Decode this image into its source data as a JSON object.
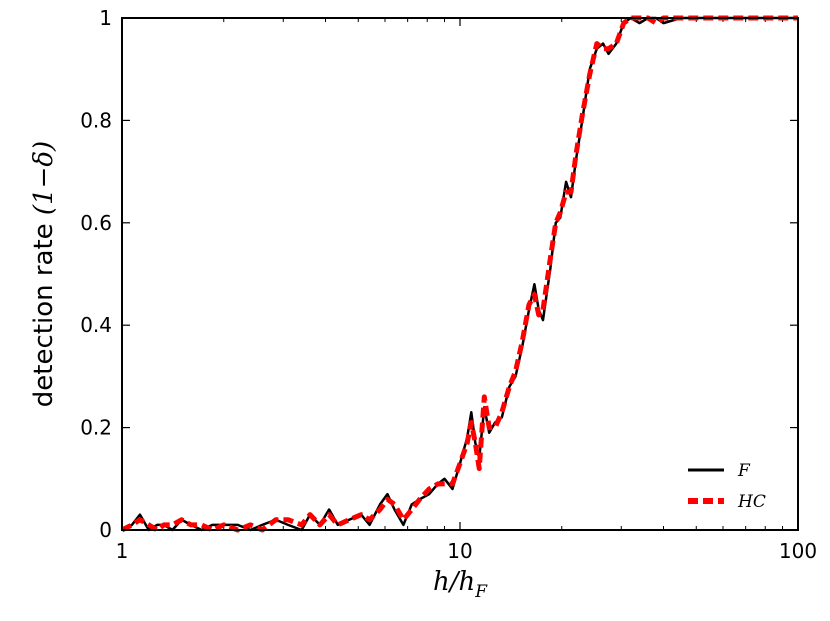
{
  "chart_data": {
    "type": "line",
    "title": "",
    "xlabel": "h/h_F",
    "xlabel_parts": {
      "base": "h/h",
      "sub": "F"
    },
    "ylabel": "detection rate (1−δ)",
    "ylabel_parts": {
      "text": "detection rate ",
      "math": "(1−δ)"
    },
    "xscale": "log",
    "xlim": [
      1,
      100
    ],
    "ylim": [
      0,
      1
    ],
    "xticks": [
      1,
      10,
      100
    ],
    "xtick_labels": [
      "1",
      "10",
      "100"
    ],
    "yticks": [
      0,
      0.2,
      0.4,
      0.6,
      0.8,
      1
    ],
    "ytick_labels": [
      "0",
      "0.2",
      "0.4",
      "0.6",
      "0.8",
      "1"
    ],
    "grid": false,
    "legend_position": "bottom-right",
    "series": [
      {
        "name": "F",
        "color": "#000000",
        "style": "solid",
        "points": [
          [
            1.0,
            0.0
          ],
          [
            1.07,
            0.01
          ],
          [
            1.13,
            0.03
          ],
          [
            1.2,
            0.0
          ],
          [
            1.27,
            0.01
          ],
          [
            1.33,
            0.01
          ],
          [
            1.41,
            0.0
          ],
          [
            1.5,
            0.02
          ],
          [
            1.6,
            0.01
          ],
          [
            1.72,
            0.0
          ],
          [
            1.85,
            0.01
          ],
          [
            2.0,
            0.01
          ],
          [
            2.2,
            0.01
          ],
          [
            2.4,
            0.0
          ],
          [
            2.6,
            0.01
          ],
          [
            2.85,
            0.02
          ],
          [
            3.1,
            0.01
          ],
          [
            3.4,
            0.0
          ],
          [
            3.6,
            0.03
          ],
          [
            3.85,
            0.01
          ],
          [
            4.1,
            0.04
          ],
          [
            4.35,
            0.01
          ],
          [
            4.7,
            0.02
          ],
          [
            5.1,
            0.03
          ],
          [
            5.4,
            0.01
          ],
          [
            5.8,
            0.05
          ],
          [
            6.1,
            0.07
          ],
          [
            6.4,
            0.04
          ],
          [
            6.8,
            0.01
          ],
          [
            7.2,
            0.05
          ],
          [
            7.6,
            0.06
          ],
          [
            8.1,
            0.07
          ],
          [
            8.6,
            0.09
          ],
          [
            9.0,
            0.1
          ],
          [
            9.5,
            0.08
          ],
          [
            10.0,
            0.13
          ],
          [
            10.5,
            0.18
          ],
          [
            10.8,
            0.23
          ],
          [
            11.1,
            0.17
          ],
          [
            11.4,
            0.14
          ],
          [
            11.8,
            0.24
          ],
          [
            12.2,
            0.19
          ],
          [
            12.7,
            0.21
          ],
          [
            13.3,
            0.22
          ],
          [
            14.0,
            0.28
          ],
          [
            14.6,
            0.3
          ],
          [
            15.3,
            0.36
          ],
          [
            16.0,
            0.43
          ],
          [
            16.6,
            0.48
          ],
          [
            17.1,
            0.43
          ],
          [
            17.6,
            0.41
          ],
          [
            18.5,
            0.51
          ],
          [
            19.2,
            0.6
          ],
          [
            19.8,
            0.61
          ],
          [
            20.6,
            0.68
          ],
          [
            21.3,
            0.65
          ],
          [
            22.0,
            0.72
          ],
          [
            23.0,
            0.8
          ],
          [
            24.2,
            0.9
          ],
          [
            25.4,
            0.94
          ],
          [
            26.5,
            0.95
          ],
          [
            27.5,
            0.93
          ],
          [
            29.0,
            0.95
          ],
          [
            30.5,
            0.99
          ],
          [
            32.0,
            1.0
          ],
          [
            34.0,
            0.99
          ],
          [
            36.0,
            1.0
          ],
          [
            38.0,
            1.0
          ],
          [
            40.0,
            0.99
          ],
          [
            45.0,
            1.0
          ],
          [
            50.0,
            1.0
          ],
          [
            60.0,
            1.0
          ],
          [
            70.0,
            1.0
          ],
          [
            85.0,
            1.0
          ],
          [
            100.0,
            1.0
          ]
        ]
      },
      {
        "name": "HC",
        "color": "#ff0000",
        "style": "dashed",
        "points": [
          [
            1.0,
            0.0
          ],
          [
            1.07,
            0.01
          ],
          [
            1.13,
            0.02
          ],
          [
            1.2,
            0.01
          ],
          [
            1.27,
            0.0
          ],
          [
            1.33,
            0.01
          ],
          [
            1.41,
            0.01
          ],
          [
            1.5,
            0.02
          ],
          [
            1.6,
            0.01
          ],
          [
            1.72,
            0.01
          ],
          [
            1.85,
            0.0
          ],
          [
            2.0,
            0.01
          ],
          [
            2.2,
            0.0
          ],
          [
            2.4,
            0.01
          ],
          [
            2.6,
            0.0
          ],
          [
            2.85,
            0.02
          ],
          [
            3.1,
            0.02
          ],
          [
            3.4,
            0.01
          ],
          [
            3.6,
            0.03
          ],
          [
            3.85,
            0.01
          ],
          [
            4.1,
            0.03
          ],
          [
            4.35,
            0.01
          ],
          [
            4.7,
            0.02
          ],
          [
            5.1,
            0.03
          ],
          [
            5.4,
            0.02
          ],
          [
            5.8,
            0.04
          ],
          [
            6.1,
            0.06
          ],
          [
            6.4,
            0.05
          ],
          [
            6.8,
            0.02
          ],
          [
            7.2,
            0.04
          ],
          [
            7.6,
            0.06
          ],
          [
            8.1,
            0.08
          ],
          [
            8.6,
            0.09
          ],
          [
            9.0,
            0.09
          ],
          [
            9.5,
            0.09
          ],
          [
            10.0,
            0.13
          ],
          [
            10.5,
            0.17
          ],
          [
            10.8,
            0.21
          ],
          [
            11.1,
            0.17
          ],
          [
            11.4,
            0.12
          ],
          [
            11.8,
            0.26
          ],
          [
            12.2,
            0.2
          ],
          [
            12.7,
            0.2
          ],
          [
            13.3,
            0.23
          ],
          [
            14.0,
            0.28
          ],
          [
            14.6,
            0.31
          ],
          [
            15.3,
            0.37
          ],
          [
            16.0,
            0.44
          ],
          [
            16.6,
            0.46
          ],
          [
            17.1,
            0.42
          ],
          [
            17.6,
            0.43
          ],
          [
            18.5,
            0.53
          ],
          [
            19.2,
            0.6
          ],
          [
            19.8,
            0.62
          ],
          [
            20.6,
            0.66
          ],
          [
            21.3,
            0.66
          ],
          [
            22.0,
            0.73
          ],
          [
            23.0,
            0.81
          ],
          [
            24.2,
            0.89
          ],
          [
            25.4,
            0.95
          ],
          [
            26.5,
            0.94
          ],
          [
            27.5,
            0.94
          ],
          [
            29.0,
            0.95
          ],
          [
            30.5,
            0.99
          ],
          [
            32.0,
            1.0
          ],
          [
            34.0,
            1.0
          ],
          [
            36.0,
            1.0
          ],
          [
            38.0,
            0.99
          ],
          [
            40.0,
            1.0
          ],
          [
            45.0,
            1.0
          ],
          [
            50.0,
            1.0
          ],
          [
            60.0,
            1.0
          ],
          [
            70.0,
            1.0
          ],
          [
            85.0,
            1.0
          ],
          [
            100.0,
            1.0
          ]
        ]
      }
    ]
  }
}
